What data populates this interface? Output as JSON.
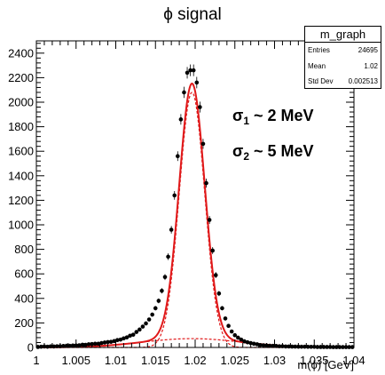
{
  "chart_data": {
    "type": "scatter",
    "title": "ϕ signal",
    "xlabel": "m(ϕ) [GeV]",
    "ylabel": "",
    "xlim": [
      1.0,
      1.04
    ],
    "ylim": [
      0,
      2500
    ],
    "xticks": [
      "1",
      "1.005",
      "1.01",
      "1.015",
      "1.02",
      "1.025",
      "1.03",
      "1.035",
      "1.04"
    ],
    "yticks": [
      "0",
      "200",
      "400",
      "600",
      "800",
      "1000",
      "1200",
      "1400",
      "1600",
      "1800",
      "2000",
      "2200",
      "2400"
    ],
    "series": [
      {
        "style": "points-with-errors",
        "x": [
          1.0002,
          1.0006,
          1.001,
          1.0014,
          1.0018,
          1.0022,
          1.0026,
          1.003,
          1.0034,
          1.0038,
          1.0042,
          1.0046,
          1.005,
          1.0054,
          1.0058,
          1.0062,
          1.0066,
          1.007,
          1.0074,
          1.0078,
          1.0082,
          1.0086,
          1.009,
          1.0094,
          1.0098,
          1.0102,
          1.0106,
          1.011,
          1.0114,
          1.0118,
          1.0122,
          1.0126,
          1.013,
          1.0134,
          1.0138,
          1.0142,
          1.0146,
          1.015,
          1.0154,
          1.0158,
          1.0162,
          1.0166,
          1.017,
          1.0174,
          1.0178,
          1.0182,
          1.0186,
          1.019,
          1.0194,
          1.0198,
          1.0202,
          1.0206,
          1.021,
          1.0214,
          1.0218,
          1.0222,
          1.0226,
          1.023,
          1.0234,
          1.0238,
          1.0242,
          1.0246,
          1.025,
          1.0254,
          1.0258,
          1.0262,
          1.0266,
          1.027,
          1.0274,
          1.0278,
          1.0282,
          1.0286,
          1.029,
          1.0294,
          1.0298,
          1.0302,
          1.0306,
          1.031,
          1.0314,
          1.0318,
          1.0322,
          1.0326,
          1.033,
          1.0334,
          1.0338,
          1.0342,
          1.0346,
          1.035,
          1.0354,
          1.0358,
          1.0362,
          1.0366,
          1.037,
          1.0374,
          1.0378,
          1.0382,
          1.0386,
          1.039,
          1.0394,
          1.0398
        ],
        "y": [
          4,
          6,
          8,
          6,
          9,
          8,
          10,
          10,
          12,
          14,
          13,
          16,
          16,
          18,
          22,
          21,
          26,
          28,
          30,
          30,
          36,
          40,
          44,
          46,
          52,
          60,
          64,
          74,
          82,
          96,
          104,
          126,
          146,
          170,
          196,
          228,
          268,
          320,
          380,
          462,
          574,
          740,
          960,
          1240,
          1560,
          1860,
          2080,
          2240,
          2260,
          2260,
          2160,
          1960,
          1660,
          1340,
          1040,
          790,
          590,
          440,
          320,
          236,
          176,
          130,
          100,
          80,
          64,
          50,
          42,
          36,
          30,
          26,
          20,
          18,
          16,
          14,
          13,
          12,
          10,
          10,
          8,
          8,
          7,
          7,
          6,
          6,
          6,
          5,
          5,
          5,
          4,
          4,
          4,
          4,
          4,
          3,
          3,
          3,
          3,
          3,
          3,
          3
        ]
      },
      {
        "name": "fit",
        "style": "solid-line",
        "color": "#e0191a",
        "model": "double-gaussian",
        "mean": 1.0196,
        "sigma1": 0.0016,
        "amp1": 2080,
        "sigma2": 0.0062,
        "amp2": 72
      },
      {
        "name": "gaussian-1",
        "style": "dashed-line",
        "color": "#e0191a",
        "mean": 1.0196,
        "sigma": 0.0016,
        "amp": 2080
      },
      {
        "name": "gaussian-2",
        "style": "dashed-line",
        "color": "#e0191a",
        "mean": 1.0196,
        "sigma": 0.0062,
        "amp": 72
      }
    ],
    "stats_box": {
      "title": "m_graph",
      "rows": [
        {
          "label": "Entries",
          "value": "24695"
        },
        {
          "label": "Mean",
          "value": "1.02"
        },
        {
          "label": "Std Dev",
          "value": "0.002513"
        }
      ]
    },
    "annotations": [
      {
        "symbol": "σ",
        "sub": "1",
        "text": "~  2 MeV"
      },
      {
        "symbol": "σ",
        "sub": "2",
        "text": "~  5 MeV"
      }
    ],
    "grid": false
  }
}
